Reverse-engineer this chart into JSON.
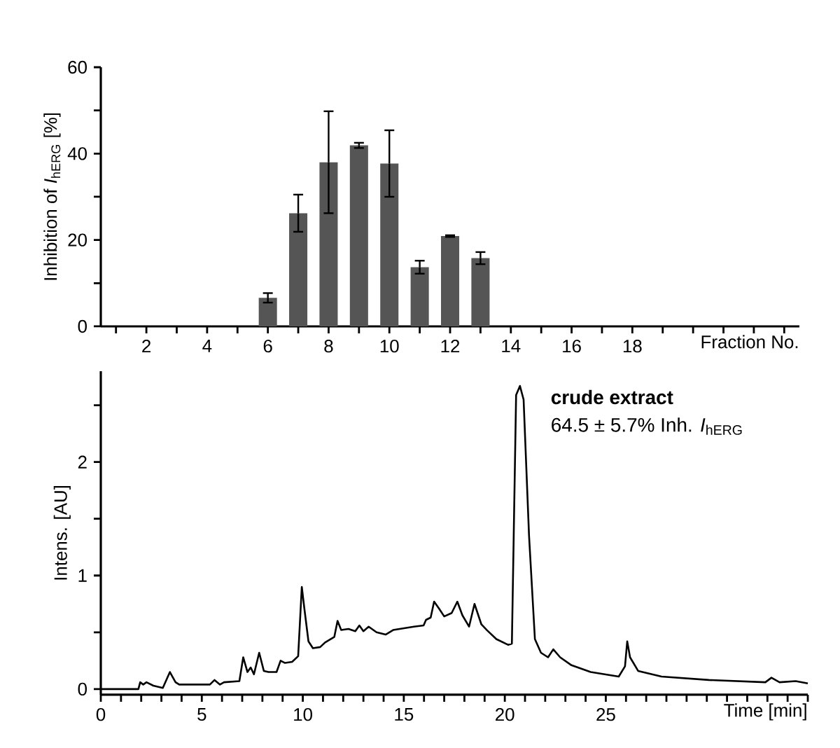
{
  "chart_data": [
    {
      "type": "bar",
      "ylabel": "Inhibition of *I*$_{hERG}$ [%]",
      "xlabel": "Fraction No.",
      "color": "#555555",
      "x": [
        6,
        7,
        8,
        9,
        10,
        11,
        12,
        13
      ],
      "values": [
        6.6,
        26.2,
        38.0,
        41.9,
        37.7,
        13.7,
        20.9,
        15.8
      ],
      "errors": [
        1.1,
        4.3,
        11.8,
        0.6,
        7.7,
        1.5,
        0.2,
        1.4
      ],
      "xlim": [
        0.5,
        23.5
      ],
      "xticks": [
        {
          "value": 1,
          "label": null
        },
        2,
        {
          "value": 3,
          "label": null
        },
        4,
        {
          "value": 5,
          "label": null
        },
        6,
        {
          "value": 7,
          "label": null
        },
        8,
        {
          "value": 9,
          "label": null
        },
        10,
        {
          "value": 11,
          "label": null
        },
        12,
        {
          "value": 13,
          "label": null
        },
        14,
        {
          "value": 15,
          "label": null
        },
        16,
        {
          "value": 17,
          "label": null
        },
        18,
        {
          "value": 19,
          "label": null
        },
        {
          "value": 20,
          "label": null
        },
        {
          "value": 21,
          "label": null
        },
        {
          "value": 22,
          "label": null
        },
        {
          "value": 23,
          "label": null
        }
      ],
      "ylim": [
        0,
        60
      ],
      "yticks": [
        0,
        {
          "value": 10,
          "label": null
        },
        20,
        {
          "value": 30,
          "label": null
        },
        40,
        {
          "value": 50,
          "label": null
        },
        60
      ],
      "grid": false
    },
    {
      "type": "line",
      "ylabel": "Intens. [AU]",
      "xlabel": "Time [min]",
      "color": "#000000",
      "x": [
        0,
        1.86,
        1.95,
        2.1,
        2.26,
        2.6,
        3.07,
        3.42,
        3.7,
        3.88,
        5.4,
        5.63,
        5.9,
        6.1,
        6.86,
        7.05,
        7.26,
        7.42,
        7.58,
        7.84,
        8.07,
        8.3,
        8.7,
        8.9,
        9.12,
        9.47,
        9.77,
        9.95,
        10.09,
        10.28,
        10.5,
        10.86,
        11.1,
        11.56,
        11.72,
        11.9,
        12.26,
        12.6,
        12.8,
        13.0,
        13.26,
        13.65,
        14.1,
        14.47,
        15.5,
        15.98,
        16.1,
        16.33,
        16.5,
        16.74,
        17.0,
        17.37,
        17.65,
        17.9,
        18.23,
        18.5,
        18.84,
        19.11,
        19.58,
        20.16,
        20.35,
        20.56,
        20.75,
        20.93,
        21.2,
        21.49,
        21.79,
        22.14,
        22.4,
        22.74,
        23.3,
        24.25,
        25.64,
        25.95,
        26.06,
        26.2,
        26.6,
        27.76,
        30.1,
        32.9,
        33.2,
        33.6,
        34.4,
        35.0
      ],
      "values": [
        0,
        0,
        0.06,
        0.04,
        0.06,
        0.03,
        0.01,
        0.15,
        0.06,
        0.04,
        0.04,
        0.08,
        0.04,
        0.06,
        0.07,
        0.28,
        0.15,
        0.19,
        0.13,
        0.32,
        0.16,
        0.15,
        0.15,
        0.25,
        0.23,
        0.24,
        0.29,
        0.9,
        0.69,
        0.42,
        0.36,
        0.37,
        0.41,
        0.46,
        0.6,
        0.52,
        0.53,
        0.51,
        0.56,
        0.51,
        0.55,
        0.5,
        0.48,
        0.52,
        0.55,
        0.56,
        0.61,
        0.63,
        0.77,
        0.71,
        0.64,
        0.67,
        0.77,
        0.65,
        0.55,
        0.75,
        0.57,
        0.52,
        0.44,
        0.39,
        0.4,
        2.59,
        2.67,
        2.55,
        1.35,
        0.44,
        0.32,
        0.28,
        0.35,
        0.28,
        0.21,
        0.15,
        0.11,
        0.2,
        0.42,
        0.28,
        0.16,
        0.11,
        0.08,
        0.06,
        0.1,
        0.06,
        0.07,
        0.05
      ],
      "xlim": [
        0,
        35
      ],
      "xticks": [
        0,
        {
          "value": 1,
          "label": null
        },
        {
          "value": 2,
          "label": null
        },
        {
          "value": 3,
          "label": null
        },
        {
          "value": 4,
          "label": null
        },
        5,
        {
          "value": 6,
          "label": null
        },
        {
          "value": 7,
          "label": null
        },
        {
          "value": 8,
          "label": null
        },
        {
          "value": 9,
          "label": null
        },
        10,
        {
          "value": 11,
          "label": null
        },
        {
          "value": 12,
          "label": null
        },
        {
          "value": 13,
          "label": null
        },
        {
          "value": 14,
          "label": null
        },
        15,
        {
          "value": 16,
          "label": null
        },
        {
          "value": 17,
          "label": null
        },
        {
          "value": 18,
          "label": null
        },
        {
          "value": 19,
          "label": null
        },
        20,
        {
          "value": 21,
          "label": null
        },
        {
          "value": 22,
          "label": null
        },
        {
          "value": 23,
          "label": null
        },
        {
          "value": 24,
          "label": null
        },
        25,
        {
          "value": 26,
          "label": null
        },
        {
          "value": 27,
          "label": null
        },
        {
          "value": 28,
          "label": null
        },
        {
          "value": 29,
          "label": null
        },
        {
          "value": 30,
          "label": null
        },
        {
          "value": 31,
          "label": null
        },
        {
          "value": 32,
          "label": null
        },
        {
          "value": 33,
          "label": null
        },
        {
          "value": 34,
          "label": null
        },
        {
          "value": 35,
          "label": null
        }
      ],
      "ylim": [
        -0.05,
        2.8
      ],
      "yticks": [
        0,
        {
          "value": 0.5,
          "label": null
        },
        1,
        {
          "value": 1.5,
          "label": null
        },
        2,
        {
          "value": 2.5,
          "label": null
        }
      ],
      "grid": false,
      "annotations": [
        "crude extract",
        "64.5 ± 5.7% Inh. *I*$_{hERG}$"
      ]
    }
  ]
}
